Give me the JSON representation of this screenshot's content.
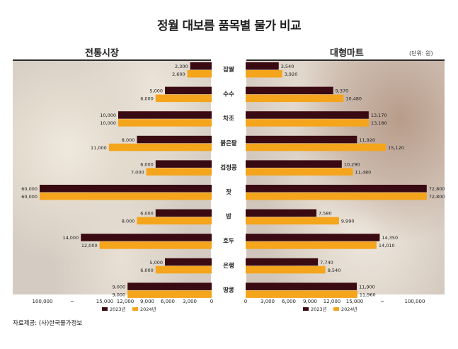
{
  "title": "정월 대보름 품목별 물가 비교",
  "unit_label": "(단위: 원)",
  "source": "자료제공: (사)한국물가정보",
  "colors": {
    "y2023": "#3a0a12",
    "y2024": "#f4a51c",
    "photo_left": "#d4ccc2",
    "photo_right": "#d1c6bb"
  },
  "chart_data": [
    {
      "type": "bar",
      "orientation": "horizontal-mirrored",
      "title": "전통시장",
      "categories": [
        "잡쌀",
        "수수",
        "차조",
        "붉은팥",
        "검정콩",
        "잣",
        "밤",
        "호두",
        "은행",
        "땅콩"
      ],
      "series": [
        {
          "name": "2023년",
          "values": [
            2300,
            5000,
            10000,
            8000,
            6000,
            60000,
            6000,
            14000,
            5000,
            9000
          ]
        },
        {
          "name": "2024년",
          "values": [
            2600,
            6000,
            10000,
            11000,
            7000,
            60000,
            8000,
            12000,
            6000,
            9000
          ]
        }
      ],
      "value_labels_2023": [
        "2,300",
        "5,000",
        "10,000",
        "8,000",
        "6,000",
        "60,000",
        "6,000",
        "14,000",
        "5,000",
        "9,000"
      ],
      "value_labels_2024": [
        "2,600",
        "6,000",
        "10,000",
        "11,000",
        "7,000",
        "60,000",
        "8,000",
        "12,000",
        "6,000",
        "9,000"
      ],
      "xticks": [
        "100,000",
        "~",
        "15,000",
        "12,000",
        "9,000",
        "6,000",
        "3,000",
        "0"
      ],
      "axis_note": "broken axis between 15,000 and 100,000"
    },
    {
      "type": "bar",
      "orientation": "horizontal",
      "title": "대형마트",
      "categories": [
        "잡쌀",
        "수수",
        "차조",
        "붉은팥",
        "검정콩",
        "잣",
        "밤",
        "호두",
        "은행",
        "땅콩"
      ],
      "series": [
        {
          "name": "2023년",
          "values": [
            3540,
            9370,
            13170,
            11920,
            10290,
            72800,
            7580,
            14350,
            7740,
            11900
          ]
        },
        {
          "name": "2024년",
          "values": [
            3920,
            10480,
            13180,
            15120,
            11480,
            72800,
            9990,
            14010,
            8540,
            11960
          ]
        }
      ],
      "value_labels_2023": [
        "3,540",
        "9,370",
        "13,170",
        "11,920",
        "10,290",
        "72,800",
        "7,580",
        "14,350",
        "7,740",
        "11,900"
      ],
      "value_labels_2024": [
        "3,920",
        "10,480",
        "13,180",
        "15,120",
        "11,480",
        "72,800",
        "9,990",
        "14,010",
        "8,540",
        "11,960"
      ],
      "xticks": [
        "0",
        "3,000",
        "6,000",
        "9,000",
        "12,000",
        "15,000",
        "~",
        "100,000"
      ],
      "axis_note": "broken axis between 15,000 and 100,000"
    }
  ]
}
